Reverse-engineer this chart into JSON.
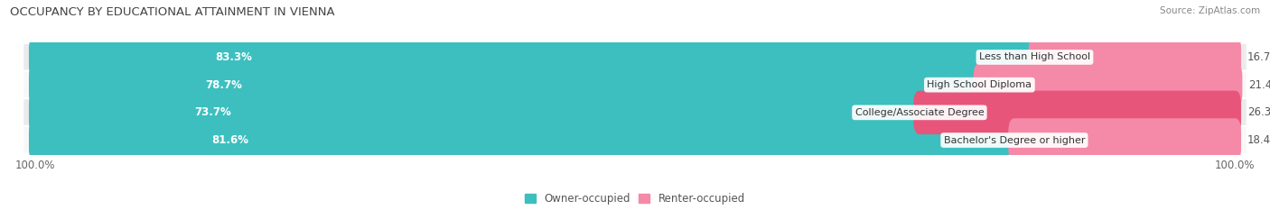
{
  "title": "OCCUPANCY BY EDUCATIONAL ATTAINMENT IN VIENNA",
  "source": "Source: ZipAtlas.com",
  "categories": [
    "Less than High School",
    "High School Diploma",
    "College/Associate Degree",
    "Bachelor's Degree or higher"
  ],
  "owner_pct": [
    83.3,
    78.7,
    73.7,
    81.6
  ],
  "renter_pct": [
    16.7,
    21.4,
    26.3,
    18.4
  ],
  "owner_color": "#3DBFBF",
  "renter_color": "#F589A8",
  "renter_color_3": "#E8557A",
  "row_bg_colors": [
    "#EBEBEB",
    "#F8F8F8",
    "#EBEBEB",
    "#F8F8F8"
  ],
  "title_fontsize": 9.5,
  "source_fontsize": 7.5,
  "label_fontsize": 8.5,
  "pct_fontsize": 8.5,
  "tick_fontsize": 8.5,
  "legend_fontsize": 8.5,
  "fig_bg_color": "#FFFFFF",
  "axis_bg_color": "#FFFFFF"
}
